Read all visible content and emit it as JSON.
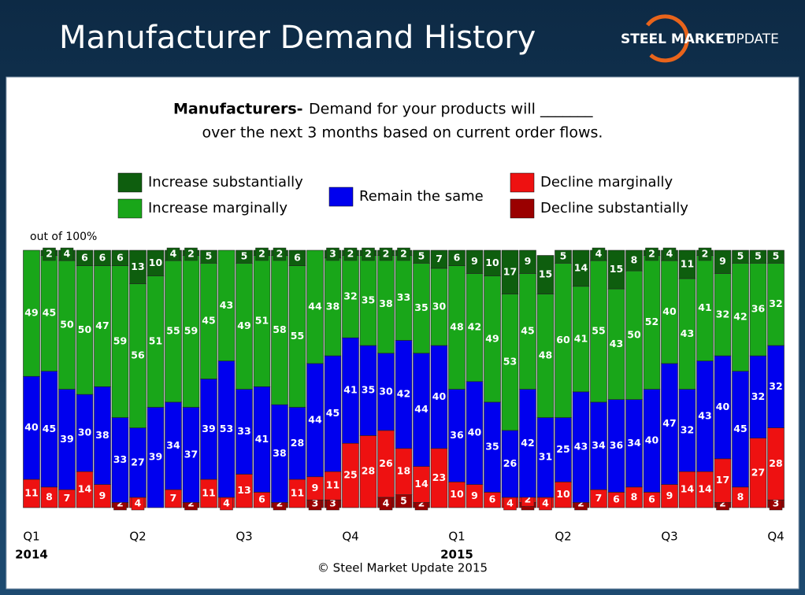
{
  "header": {
    "title": "Manufacturer Demand History",
    "logo_bold": "STEEL MARKET",
    "logo_light": "UPDATE"
  },
  "chart_data": {
    "type": "stacked-bar",
    "title_bold": "Manufacturers-",
    "title_line1": "Demand for your products will _______",
    "title_line2": "over the next 3 months based on current order flows.",
    "y_label": "out of 100%",
    "footer": "© Steel Market Update 2015",
    "ylim": [
      0,
      100
    ],
    "categories": [
      "Q1",
      null,
      null,
      null,
      null,
      null,
      "Q2",
      null,
      null,
      null,
      null,
      null,
      "Q3",
      null,
      null,
      null,
      null,
      null,
      "Q4",
      null,
      null,
      null,
      null,
      null,
      "Q1",
      null,
      null,
      null,
      null,
      null,
      "Q2",
      null,
      null,
      null,
      null,
      null,
      "Q3",
      null,
      null,
      null,
      null,
      null,
      "Q4"
    ],
    "years": [
      "2014",
      null,
      null,
      null,
      null,
      null,
      null,
      null,
      null,
      null,
      null,
      null,
      null,
      null,
      null,
      null,
      null,
      null,
      null,
      null,
      null,
      null,
      null,
      null,
      "2015",
      null,
      null,
      null,
      null,
      null,
      null,
      null,
      null,
      null,
      null,
      null,
      null,
      null,
      null,
      null,
      null,
      null,
      null
    ],
    "series": [
      {
        "name": "Increase substantially",
        "color": "#0e5e0e",
        "values": [
          null,
          2,
          4,
          6,
          6,
          6,
          13,
          10,
          4,
          2,
          5,
          null,
          5,
          2,
          2,
          6,
          null,
          3,
          2,
          2,
          2,
          2,
          5,
          7,
          6,
          9,
          10,
          17,
          9,
          15,
          5,
          14,
          4,
          15,
          8,
          2,
          4,
          11,
          2,
          9,
          5,
          5,
          5
        ]
      },
      {
        "name": "Increase marginally",
        "color": "#19a619",
        "values": [
          49,
          45,
          50,
          50,
          47,
          59,
          56,
          51,
          55,
          59,
          45,
          43,
          49,
          51,
          58,
          55,
          44,
          38,
          32,
          35,
          38,
          33,
          35,
          30,
          48,
          42,
          49,
          53,
          45,
          48,
          60,
          41,
          55,
          43,
          50,
          52,
          40,
          43,
          41,
          32,
          42,
          36,
          32
        ]
      },
      {
        "name": "Remain the same",
        "color": "#0000ee",
        "values": [
          40,
          45,
          39,
          30,
          38,
          33,
          27,
          39,
          34,
          37,
          39,
          53,
          33,
          41,
          38,
          28,
          44,
          45,
          41,
          35,
          30,
          42,
          44,
          40,
          36,
          40,
          35,
          26,
          42,
          31,
          25,
          43,
          34,
          36,
          34,
          40,
          47,
          32,
          43,
          40,
          45,
          32,
          32
        ]
      },
      {
        "name": "Decline marginally",
        "color": "#ee1111",
        "values": [
          11,
          8,
          7,
          14,
          9,
          null,
          4,
          null,
          7,
          null,
          11,
          4,
          13,
          6,
          null,
          11,
          9,
          11,
          25,
          28,
          26,
          18,
          14,
          23,
          10,
          9,
          6,
          4,
          2,
          4,
          10,
          null,
          7,
          6,
          8,
          6,
          9,
          14,
          14,
          17,
          8,
          27,
          28
        ]
      },
      {
        "name": "Decline substantially",
        "color": "#9a0000",
        "values": [
          null,
          null,
          null,
          null,
          null,
          2,
          null,
          null,
          null,
          2,
          null,
          null,
          null,
          null,
          2,
          null,
          3,
          3,
          null,
          null,
          4,
          5,
          2,
          null,
          null,
          null,
          null,
          null,
          2,
          null,
          null,
          2,
          null,
          null,
          null,
          null,
          null,
          null,
          null,
          2,
          null,
          null,
          3
        ]
      }
    ]
  }
}
